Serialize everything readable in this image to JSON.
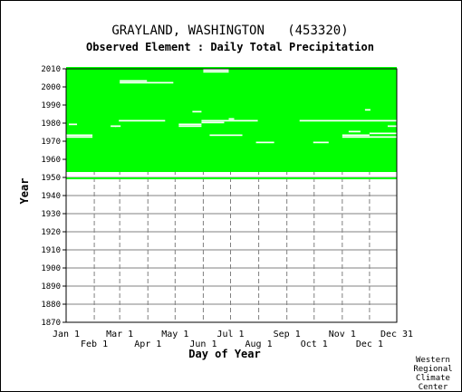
{
  "chart_data": {
    "type": "heatmap",
    "title": "GRAYLAND, WASHINGTON   (453320)",
    "subtitle": "Observed Element : Daily Total Precipitation",
    "xlabel": "Day of Year",
    "ylabel": "Year",
    "x_ticks_top_row": [
      "Jan 1",
      "Mar 1",
      "May 1",
      "Jul 1",
      "Sep 1",
      "Nov 1",
      "Dec 31"
    ],
    "x_ticks_bottom_row": [
      "Feb 1",
      "Apr 1",
      "Jun 1",
      "Aug 1",
      "Oct 1",
      "Dec 1"
    ],
    "y_ticks": [
      2010,
      2000,
      1990,
      1980,
      1970,
      1960,
      1950,
      1940,
      1930,
      1920,
      1910,
      1900,
      1890,
      1880,
      1870
    ],
    "ylim": [
      1870,
      2010
    ],
    "xlim_day_of_year": [
      1,
      365
    ],
    "grid": true,
    "data_color": "#00ff00",
    "coverage_note_text": "",
    "data_present_year_ranges": [
      {
        "start": 1949,
        "end": 1949,
        "days": [
          1,
          365
        ]
      },
      {
        "start": 1953,
        "end": 2010,
        "days": [
          1,
          365
        ]
      }
    ],
    "missing_segments": [
      {
        "year": 1948,
        "days": [
          1,
          365
        ]
      },
      {
        "year": 1950,
        "days": [
          1,
          365
        ]
      },
      {
        "year": 1951,
        "days": [
          1,
          365
        ]
      },
      {
        "year": 1952,
        "days": [
          1,
          150
        ]
      },
      {
        "year": 1952,
        "days": [
          151,
          365
        ]
      },
      {
        "year": 1981,
        "days": [
          59,
          110
        ]
      },
      {
        "year": 1981,
        "days": [
          258,
          365
        ]
      },
      {
        "year": 1981,
        "days": [
          150,
          212
        ]
      },
      {
        "year": 1980,
        "days": [
          150,
          175
        ]
      },
      {
        "year": 2003,
        "days": [
          60,
          90
        ]
      },
      {
        "year": 2002,
        "days": [
          60,
          119
        ]
      },
      {
        "year": 2009,
        "days": [
          152,
          180
        ]
      },
      {
        "year": 2008,
        "days": [
          152,
          180
        ]
      },
      {
        "year": 1973,
        "days": [
          1,
          30
        ]
      },
      {
        "year": 1972,
        "days": [
          1,
          30
        ]
      },
      {
        "year": 1978,
        "days": [
          125,
          150
        ]
      },
      {
        "year": 1979,
        "days": [
          125,
          150
        ]
      },
      {
        "year": 1973,
        "days": [
          159,
          195
        ]
      },
      {
        "year": 1969,
        "days": [
          210,
          230
        ]
      },
      {
        "year": 1969,
        "days": [
          273,
          290
        ]
      },
      {
        "year": 1973,
        "days": [
          305,
          335
        ]
      },
      {
        "year": 1972,
        "days": [
          305,
          365
        ]
      },
      {
        "year": 1974,
        "days": [
          335,
          365
        ]
      },
      {
        "year": 1975,
        "days": [
          312,
          325
        ]
      },
      {
        "year": 1978,
        "days": [
          55,
          61
        ]
      },
      {
        "year": 1979,
        "days": [
          4,
          13
        ]
      },
      {
        "year": 1978,
        "days": [
          50,
          56
        ]
      },
      {
        "year": 1986,
        "days": [
          140,
          150
        ]
      },
      {
        "year": 1982,
        "days": [
          180,
          186
        ]
      },
      {
        "year": 1987,
        "days": [
          330,
          336
        ]
      },
      {
        "year": 1978,
        "days": [
          355,
          365
        ]
      }
    ]
  },
  "credit": {
    "line1": "Western",
    "line2": "Regional",
    "line3": "Climate",
    "line4": "Center"
  }
}
